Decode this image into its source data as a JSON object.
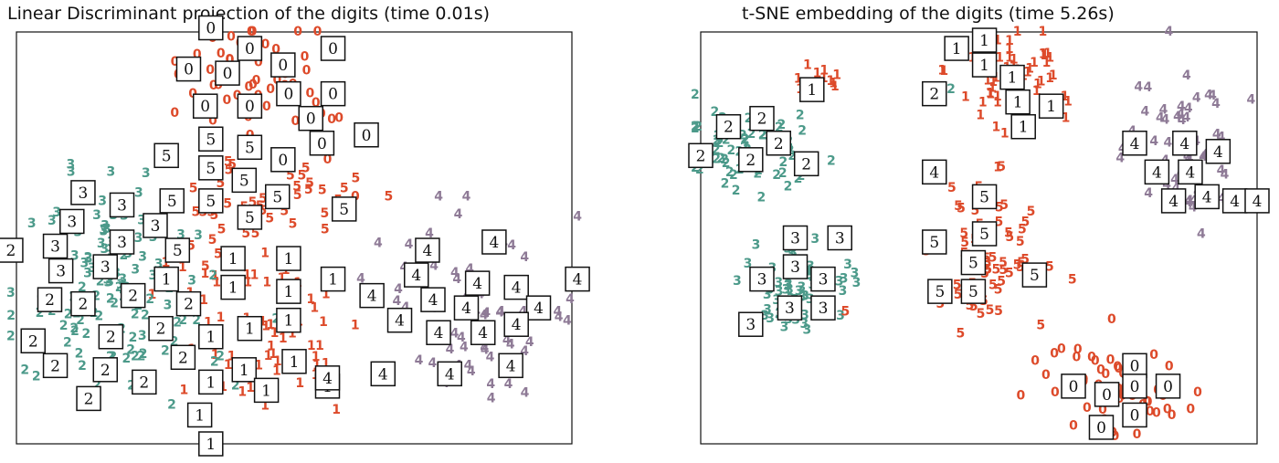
{
  "chart_data": [
    {
      "type": "scatter",
      "title": "Linear Discriminant projection of the digits (time 0.01s)",
      "xlabel": "",
      "ylabel": "",
      "axis_ticks": false,
      "grid": false,
      "classes": [
        {
          "label": "0",
          "color": "#dd4a2a",
          "center": [
            0.45,
            0.11
          ],
          "spread": [
            0.08,
            0.07
          ],
          "count": 55
        },
        {
          "label": "5",
          "color": "#dd4a2a",
          "center": [
            0.42,
            0.39
          ],
          "spread": [
            0.09,
            0.06
          ],
          "count": 45
        },
        {
          "label": "1",
          "color": "#dd4a2a",
          "center": [
            0.44,
            0.74
          ],
          "spread": [
            0.09,
            0.12
          ],
          "count": 65
        },
        {
          "label": "3",
          "color": "#4c9a8a",
          "center": [
            0.17,
            0.53
          ],
          "spread": [
            0.07,
            0.09
          ],
          "count": 55
        },
        {
          "label": "2",
          "color": "#4c9a8a",
          "center": [
            0.19,
            0.72
          ],
          "spread": [
            0.1,
            0.08
          ],
          "count": 65
        },
        {
          "label": "4",
          "color": "#8e7a96",
          "center": [
            0.83,
            0.68
          ],
          "spread": [
            0.09,
            0.09
          ],
          "count": 60
        }
      ],
      "thumbnails": [
        {
          "digit": "0",
          "x": 0.35,
          "y": -0.01
        },
        {
          "digit": "0",
          "x": 0.42,
          "y": 0.04
        },
        {
          "digit": "0",
          "x": 0.57,
          "y": 0.04
        },
        {
          "digit": "0",
          "x": 0.31,
          "y": 0.09
        },
        {
          "digit": "0",
          "x": 0.38,
          "y": 0.1
        },
        {
          "digit": "0",
          "x": 0.48,
          "y": 0.08
        },
        {
          "digit": "0",
          "x": 0.49,
          "y": 0.15
        },
        {
          "digit": "0",
          "x": 0.57,
          "y": 0.15
        },
        {
          "digit": "0",
          "x": 0.34,
          "y": 0.18
        },
        {
          "digit": "0",
          "x": 0.42,
          "y": 0.18
        },
        {
          "digit": "0",
          "x": 0.53,
          "y": 0.21
        },
        {
          "digit": "0",
          "x": 0.55,
          "y": 0.27
        },
        {
          "digit": "0",
          "x": 0.63,
          "y": 0.25
        },
        {
          "digit": "0",
          "x": 0.48,
          "y": 0.31
        },
        {
          "digit": "5",
          "x": 0.27,
          "y": 0.3
        },
        {
          "digit": "5",
          "x": 0.35,
          "y": 0.26
        },
        {
          "digit": "5",
          "x": 0.42,
          "y": 0.28
        },
        {
          "digit": "5",
          "x": 0.35,
          "y": 0.33
        },
        {
          "digit": "5",
          "x": 0.41,
          "y": 0.36
        },
        {
          "digit": "5",
          "x": 0.28,
          "y": 0.41
        },
        {
          "digit": "5",
          "x": 0.35,
          "y": 0.41
        },
        {
          "digit": "5",
          "x": 0.47,
          "y": 0.4
        },
        {
          "digit": "5",
          "x": 0.42,
          "y": 0.45
        },
        {
          "digit": "5",
          "x": 0.29,
          "y": 0.53
        },
        {
          "digit": "5",
          "x": 0.59,
          "y": 0.43
        },
        {
          "digit": "3",
          "x": 0.12,
          "y": 0.39
        },
        {
          "digit": "3",
          "x": 0.19,
          "y": 0.42
        },
        {
          "digit": "3",
          "x": 0.1,
          "y": 0.46
        },
        {
          "digit": "3",
          "x": 0.25,
          "y": 0.47
        },
        {
          "digit": "3",
          "x": 0.19,
          "y": 0.51
        },
        {
          "digit": "3",
          "x": 0.07,
          "y": 0.52
        },
        {
          "digit": "3",
          "x": 0.08,
          "y": 0.58
        },
        {
          "digit": "3",
          "x": 0.16,
          "y": 0.57
        },
        {
          "digit": "2",
          "x": -0.01,
          "y": 0.53
        },
        {
          "digit": "2",
          "x": 0.06,
          "y": 0.65
        },
        {
          "digit": "2",
          "x": 0.12,
          "y": 0.66
        },
        {
          "digit": "2",
          "x": 0.21,
          "y": 0.64
        },
        {
          "digit": "2",
          "x": 0.31,
          "y": 0.66
        },
        {
          "digit": "2",
          "x": 0.26,
          "y": 0.72
        },
        {
          "digit": "2",
          "x": 0.17,
          "y": 0.74
        },
        {
          "digit": "2",
          "x": 0.03,
          "y": 0.75
        },
        {
          "digit": "2",
          "x": 0.07,
          "y": 0.81
        },
        {
          "digit": "2",
          "x": 0.16,
          "y": 0.82
        },
        {
          "digit": "2",
          "x": 0.3,
          "y": 0.79
        },
        {
          "digit": "2",
          "x": 0.23,
          "y": 0.85
        },
        {
          "digit": "2",
          "x": 0.13,
          "y": 0.89
        },
        {
          "digit": "1",
          "x": 0.27,
          "y": 0.6
        },
        {
          "digit": "1",
          "x": 0.39,
          "y": 0.55
        },
        {
          "digit": "1",
          "x": 0.49,
          "y": 0.55
        },
        {
          "digit": "1",
          "x": 0.57,
          "y": 0.6
        },
        {
          "digit": "1",
          "x": 0.39,
          "y": 0.62
        },
        {
          "digit": "1",
          "x": 0.49,
          "y": 0.63
        },
        {
          "digit": "1",
          "x": 0.49,
          "y": 0.7
        },
        {
          "digit": "1",
          "x": 0.42,
          "y": 0.72
        },
        {
          "digit": "1",
          "x": 0.35,
          "y": 0.74
        },
        {
          "digit": "1",
          "x": 0.5,
          "y": 0.8
        },
        {
          "digit": "1",
          "x": 0.41,
          "y": 0.82
        },
        {
          "digit": "1",
          "x": 0.35,
          "y": 0.85
        },
        {
          "digit": "1",
          "x": 0.45,
          "y": 0.87
        },
        {
          "digit": "1",
          "x": 0.56,
          "y": 0.86
        },
        {
          "digit": "1",
          "x": 0.33,
          "y": 0.93
        },
        {
          "digit": "1",
          "x": 0.35,
          "y": 1.0
        },
        {
          "digit": "4",
          "x": 0.72,
          "y": 0.59
        },
        {
          "digit": "4",
          "x": 0.86,
          "y": 0.51
        },
        {
          "digit": "4",
          "x": 0.74,
          "y": 0.53
        },
        {
          "digit": "4",
          "x": 0.83,
          "y": 0.61
        },
        {
          "digit": "4",
          "x": 0.64,
          "y": 0.64
        },
        {
          "digit": "4",
          "x": 0.75,
          "y": 0.65
        },
        {
          "digit": "4",
          "x": 0.81,
          "y": 0.67
        },
        {
          "digit": "4",
          "x": 0.9,
          "y": 0.62
        },
        {
          "digit": "4",
          "x": 0.94,
          "y": 0.67
        },
        {
          "digit": "4",
          "x": 0.69,
          "y": 0.7
        },
        {
          "digit": "4",
          "x": 0.76,
          "y": 0.73
        },
        {
          "digit": "4",
          "x": 0.84,
          "y": 0.73
        },
        {
          "digit": "4",
          "x": 0.9,
          "y": 0.71
        },
        {
          "digit": "4",
          "x": 0.66,
          "y": 0.83
        },
        {
          "digit": "4",
          "x": 0.78,
          "y": 0.83
        },
        {
          "digit": "4",
          "x": 0.89,
          "y": 0.81
        },
        {
          "digit": "4",
          "x": 1.01,
          "y": 0.6
        },
        {
          "digit": "4",
          "x": 0.56,
          "y": 0.84
        }
      ],
      "outlier_labels": [
        {
          "label": "3",
          "color": "#4c9a8a",
          "x": 0.17,
          "y": 0.34
        },
        {
          "label": "5",
          "color": "#dd4a2a",
          "x": 0.59,
          "y": 0.38
        },
        {
          "label": "0",
          "color": "#dd4a2a",
          "x": 0.56,
          "y": 0.31
        },
        {
          "label": "0",
          "color": "#dd4a2a",
          "x": 0.61,
          "y": 0.4
        },
        {
          "label": "5",
          "color": "#dd4a2a",
          "x": 0.67,
          "y": 0.4
        },
        {
          "label": "5",
          "color": "#dd4a2a",
          "x": 0.34,
          "y": 0.57
        },
        {
          "label": "4",
          "color": "#8e7a96",
          "x": 0.76,
          "y": 0.4
        },
        {
          "label": "4",
          "color": "#8e7a96",
          "x": 0.81,
          "y": 0.4
        },
        {
          "label": "4",
          "color": "#8e7a96",
          "x": 0.62,
          "y": 0.6
        }
      ]
    },
    {
      "type": "scatter",
      "title": "t-SNE embedding of the digits (time 5.26s)",
      "xlabel": "",
      "ylabel": "",
      "axis_ticks": false,
      "grid": false,
      "classes": [
        {
          "label": "1",
          "color": "#dd4a2a",
          "center": [
            0.56,
            0.1
          ],
          "spread": [
            0.06,
            0.07
          ],
          "count": 55
        },
        {
          "label": "1",
          "color": "#dd4a2a",
          "center": [
            0.22,
            0.11
          ],
          "spread": [
            0.03,
            0.02
          ],
          "count": 10
        },
        {
          "label": "2",
          "color": "#4c9a8a",
          "center": [
            0.09,
            0.28
          ],
          "spread": [
            0.06,
            0.05
          ],
          "count": 65
        },
        {
          "label": "4",
          "color": "#8e7a96",
          "center": [
            0.87,
            0.3
          ],
          "spread": [
            0.05,
            0.08
          ],
          "count": 60
        },
        {
          "label": "5",
          "color": "#dd4a2a",
          "center": [
            0.51,
            0.53
          ],
          "spread": [
            0.05,
            0.09
          ],
          "count": 60
        },
        {
          "label": "3",
          "color": "#4c9a8a",
          "center": [
            0.17,
            0.63
          ],
          "spread": [
            0.05,
            0.07
          ],
          "count": 60
        },
        {
          "label": "0",
          "color": "#dd4a2a",
          "center": [
            0.75,
            0.87
          ],
          "spread": [
            0.06,
            0.06
          ],
          "count": 60
        }
      ],
      "thumbnails": [
        {
          "digit": "1",
          "x": 0.46,
          "y": 0.04
        },
        {
          "digit": "1",
          "x": 0.51,
          "y": 0.02
        },
        {
          "digit": "1",
          "x": 0.51,
          "y": 0.08
        },
        {
          "digit": "1",
          "x": 0.56,
          "y": 0.11
        },
        {
          "digit": "1",
          "x": 0.57,
          "y": 0.17
        },
        {
          "digit": "1",
          "x": 0.63,
          "y": 0.18
        },
        {
          "digit": "1",
          "x": 0.58,
          "y": 0.23
        },
        {
          "digit": "1",
          "x": 0.2,
          "y": 0.14
        },
        {
          "digit": "2",
          "x": 0.42,
          "y": 0.15
        },
        {
          "digit": "2",
          "x": 0.05,
          "y": 0.23
        },
        {
          "digit": "2",
          "x": 0.11,
          "y": 0.21
        },
        {
          "digit": "2",
          "x": 0.14,
          "y": 0.27
        },
        {
          "digit": "2",
          "x": 0.0,
          "y": 0.3
        },
        {
          "digit": "2",
          "x": 0.09,
          "y": 0.31
        },
        {
          "digit": "2",
          "x": 0.19,
          "y": 0.32
        },
        {
          "digit": "4",
          "x": 0.78,
          "y": 0.27
        },
        {
          "digit": "4",
          "x": 0.87,
          "y": 0.27
        },
        {
          "digit": "4",
          "x": 0.93,
          "y": 0.29
        },
        {
          "digit": "4",
          "x": 0.82,
          "y": 0.34
        },
        {
          "digit": "4",
          "x": 0.88,
          "y": 0.34
        },
        {
          "digit": "4",
          "x": 0.85,
          "y": 0.41
        },
        {
          "digit": "4",
          "x": 0.91,
          "y": 0.4
        },
        {
          "digit": "4",
          "x": 0.96,
          "y": 0.41
        },
        {
          "digit": "4",
          "x": 1.0,
          "y": 0.41
        },
        {
          "digit": "4",
          "x": 0.42,
          "y": 0.34
        },
        {
          "digit": "5",
          "x": 0.51,
          "y": 0.4
        },
        {
          "digit": "5",
          "x": 0.51,
          "y": 0.49
        },
        {
          "digit": "5",
          "x": 0.42,
          "y": 0.51
        },
        {
          "digit": "5",
          "x": 0.49,
          "y": 0.56
        },
        {
          "digit": "5",
          "x": 0.6,
          "y": 0.59
        },
        {
          "digit": "5",
          "x": 0.43,
          "y": 0.63
        },
        {
          "digit": "5",
          "x": 0.49,
          "y": 0.63
        },
        {
          "digit": "3",
          "x": 0.17,
          "y": 0.5
        },
        {
          "digit": "3",
          "x": 0.25,
          "y": 0.5
        },
        {
          "digit": "3",
          "x": 0.17,
          "y": 0.57
        },
        {
          "digit": "3",
          "x": 0.11,
          "y": 0.6
        },
        {
          "digit": "3",
          "x": 0.22,
          "y": 0.6
        },
        {
          "digit": "3",
          "x": 0.16,
          "y": 0.67
        },
        {
          "digit": "3",
          "x": 0.22,
          "y": 0.67
        },
        {
          "digit": "3",
          "x": 0.09,
          "y": 0.71
        },
        {
          "digit": "0",
          "x": 0.78,
          "y": 0.81
        },
        {
          "digit": "0",
          "x": 0.67,
          "y": 0.86
        },
        {
          "digit": "0",
          "x": 0.78,
          "y": 0.86
        },
        {
          "digit": "0",
          "x": 0.84,
          "y": 0.86
        },
        {
          "digit": "0",
          "x": 0.73,
          "y": 0.88
        },
        {
          "digit": "0",
          "x": 0.78,
          "y": 0.93
        },
        {
          "digit": "0",
          "x": 0.72,
          "y": 0.96
        }
      ],
      "outlier_labels": [
        {
          "label": "2",
          "color": "#4c9a8a",
          "x": 0.45,
          "y": 0.14
        },
        {
          "label": "1",
          "color": "#dd4a2a",
          "x": 0.66,
          "y": 0.17
        },
        {
          "label": "5",
          "color": "#dd4a2a",
          "x": 0.26,
          "y": 0.68
        },
        {
          "label": "3",
          "color": "#4c9a8a",
          "x": 0.28,
          "y": 0.61
        }
      ]
    }
  ]
}
